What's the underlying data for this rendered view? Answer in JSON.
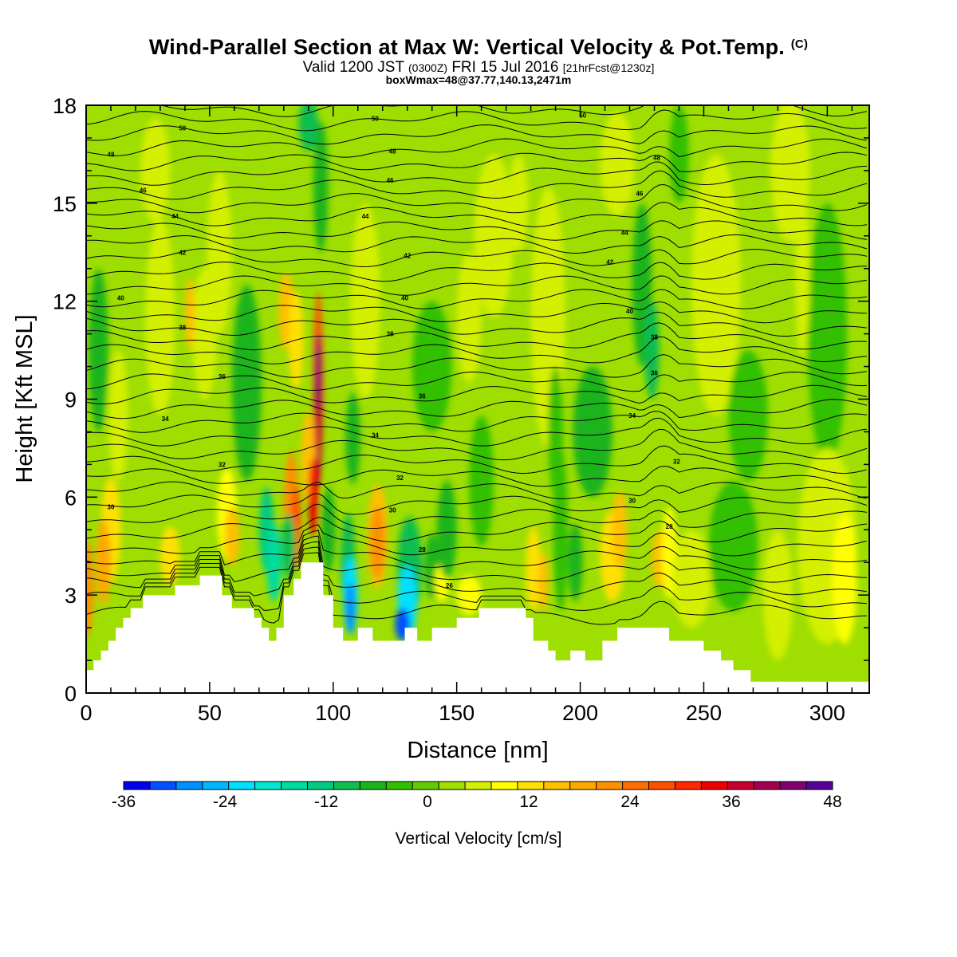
{
  "header": {
    "title": "Wind-Parallel Section at Max W: Vertical Velocity & Pot.Temp.",
    "title_mark": "(C)",
    "valid_prefix": "Valid 1200 JST",
    "valid_utc": "(0300Z)",
    "valid_date": "FRI 15 Jul 2016",
    "forecast_info": "[21hrFcst@1230z]",
    "box_info": "boxWmax=48@37.77,140.13,2471m"
  },
  "chart_data": {
    "type": "heatmap",
    "xlabel": "Distance [nm]",
    "ylabel": "Height [Kft MSL]",
    "xlim": [
      0,
      317
    ],
    "ylim": [
      0,
      18
    ],
    "x_ticks": [
      "0",
      "50",
      "100",
      "150",
      "200",
      "250",
      "300"
    ],
    "x_tick_values": [
      0,
      50,
      100,
      150,
      200,
      250,
      300
    ],
    "y_ticks": [
      "0",
      "3",
      "6",
      "9",
      "12",
      "15",
      "18"
    ],
    "y_tick_values": [
      0,
      3,
      6,
      9,
      12,
      15,
      18
    ],
    "colorbar": {
      "label": "Vertical Velocity [cm/s]",
      "tick_labels": [
        "-36",
        "-24",
        "-12",
        "0",
        "12",
        "24",
        "36",
        "48"
      ],
      "tick_values": [
        -36,
        -24,
        -12,
        0,
        12,
        24,
        36,
        48
      ],
      "levels": [
        -36,
        -33,
        -30,
        -27,
        -24,
        -21,
        -18,
        -15,
        -12,
        -9,
        -6,
        -3,
        0,
        3,
        6,
        9,
        12,
        15,
        18,
        21,
        24,
        27,
        30,
        33,
        36,
        39,
        42,
        45,
        48
      ],
      "colors": [
        "#0000f0",
        "#0050ff",
        "#0090ff",
        "#00b8ff",
        "#00e0ff",
        "#00e8d0",
        "#00dca0",
        "#00cc80",
        "#10be50",
        "#1cb41c",
        "#30c000",
        "#62cc00",
        "#9ede00",
        "#d4f000",
        "#ffff00",
        "#ffe000",
        "#ffc000",
        "#ffa800",
        "#ff9000",
        "#ff7000",
        "#ff5000",
        "#ff2800",
        "#ee0000",
        "#c8002e",
        "#a00050",
        "#800070",
        "#58009a"
      ]
    },
    "max_vertical_velocity": 48,
    "max_location": "37.77,140.13",
    "max_height_m": 2471,
    "terrain_kft": [
      [
        0,
        0.7
      ],
      [
        3,
        0.7
      ],
      [
        3,
        1.0
      ],
      [
        6,
        1.0
      ],
      [
        6,
        1.3
      ],
      [
        9,
        1.3
      ],
      [
        9,
        1.6
      ],
      [
        12,
        1.6
      ],
      [
        12,
        2.0
      ],
      [
        15,
        2.0
      ],
      [
        15,
        2.3
      ],
      [
        18,
        2.3
      ],
      [
        18,
        2.6
      ],
      [
        23,
        2.6
      ],
      [
        23,
        3.0
      ],
      [
        36,
        3.0
      ],
      [
        36,
        3.3
      ],
      [
        46,
        3.3
      ],
      [
        46,
        3.6
      ],
      [
        55,
        3.6
      ],
      [
        55,
        3.0
      ],
      [
        59,
        3.0
      ],
      [
        59,
        2.6
      ],
      [
        68,
        2.6
      ],
      [
        68,
        2.3
      ],
      [
        71,
        2.3
      ],
      [
        71,
        2.0
      ],
      [
        74,
        2.0
      ],
      [
        74,
        1.6
      ],
      [
        77,
        1.6
      ],
      [
        77,
        2.0
      ],
      [
        80,
        2.0
      ],
      [
        80,
        3.0
      ],
      [
        84,
        3.0
      ],
      [
        84,
        3.5
      ],
      [
        87,
        3.5
      ],
      [
        87,
        4.0
      ],
      [
        96,
        4.0
      ],
      [
        96,
        3.0
      ],
      [
        100,
        3.0
      ],
      [
        100,
        2.0
      ],
      [
        104,
        2.0
      ],
      [
        104,
        1.6
      ],
      [
        110,
        1.6
      ],
      [
        110,
        2.0
      ],
      [
        116,
        2.0
      ],
      [
        116,
        1.6
      ],
      [
        129,
        1.6
      ],
      [
        129,
        2.0
      ],
      [
        134,
        2.0
      ],
      [
        134,
        1.6
      ],
      [
        140,
        1.6
      ],
      [
        140,
        2.0
      ],
      [
        150,
        2.0
      ],
      [
        150,
        2.3
      ],
      [
        159,
        2.3
      ],
      [
        159,
        2.6
      ],
      [
        178,
        2.6
      ],
      [
        178,
        2.3
      ],
      [
        181,
        2.3
      ],
      [
        181,
        1.6
      ],
      [
        187,
        1.6
      ],
      [
        187,
        1.3
      ],
      [
        190,
        1.3
      ],
      [
        190,
        1.0
      ],
      [
        196,
        1.0
      ],
      [
        196,
        1.3
      ],
      [
        202,
        1.3
      ],
      [
        202,
        1.0
      ],
      [
        209,
        1.0
      ],
      [
        209,
        1.6
      ],
      [
        215,
        1.6
      ],
      [
        215,
        2.0
      ],
      [
        236,
        2.0
      ],
      [
        236,
        1.6
      ],
      [
        250,
        1.6
      ],
      [
        250,
        1.3
      ],
      [
        257,
        1.3
      ],
      [
        257,
        1.0
      ],
      [
        262,
        1.0
      ],
      [
        262,
        0.7
      ],
      [
        269,
        0.7
      ],
      [
        269,
        0.35
      ],
      [
        317,
        0.35
      ]
    ],
    "theta_contour_labels": [
      {
        "text": "50",
        "x": 39,
        "y": 17.3
      },
      {
        "text": "50",
        "x": 117,
        "y": 17.6
      },
      {
        "text": "50",
        "x": 201,
        "y": 17.7
      },
      {
        "text": "48",
        "x": 10,
        "y": 16.5
      },
      {
        "text": "48",
        "x": 124,
        "y": 16.6
      },
      {
        "text": "48",
        "x": 231,
        "y": 16.4
      },
      {
        "text": "46",
        "x": 23,
        "y": 15.4
      },
      {
        "text": "46",
        "x": 123,
        "y": 15.7
      },
      {
        "text": "46",
        "x": 224,
        "y": 15.3
      },
      {
        "text": "44",
        "x": 36,
        "y": 14.6
      },
      {
        "text": "44",
        "x": 113,
        "y": 14.6
      },
      {
        "text": "44",
        "x": 218,
        "y": 14.1
      },
      {
        "text": "42",
        "x": 39,
        "y": 13.5
      },
      {
        "text": "42",
        "x": 130,
        "y": 13.4
      },
      {
        "text": "42",
        "x": 212,
        "y": 13.2
      },
      {
        "text": "40",
        "x": 14,
        "y": 12.1
      },
      {
        "text": "40",
        "x": 129,
        "y": 12.1
      },
      {
        "text": "40",
        "x": 220,
        "y": 11.7
      },
      {
        "text": "38",
        "x": 39,
        "y": 11.2
      },
      {
        "text": "38",
        "x": 123,
        "y": 11.0
      },
      {
        "text": "38",
        "x": 230,
        "y": 10.9
      },
      {
        "text": "36",
        "x": 55,
        "y": 9.7
      },
      {
        "text": "36",
        "x": 136,
        "y": 9.1
      },
      {
        "text": "36",
        "x": 230,
        "y": 9.8
      },
      {
        "text": "34",
        "x": 32,
        "y": 8.4
      },
      {
        "text": "34",
        "x": 117,
        "y": 7.9
      },
      {
        "text": "34",
        "x": 221,
        "y": 8.5
      },
      {
        "text": "32",
        "x": 55,
        "y": 7.0
      },
      {
        "text": "32",
        "x": 127,
        "y": 6.6
      },
      {
        "text": "32",
        "x": 239,
        "y": 7.1
      },
      {
        "text": "30",
        "x": 10,
        "y": 5.7
      },
      {
        "text": "30",
        "x": 124,
        "y": 5.6
      },
      {
        "text": "30",
        "x": 221,
        "y": 5.9
      },
      {
        "text": "28",
        "x": 136,
        "y": 4.4
      },
      {
        "text": "28",
        "x": 236,
        "y": 5.1
      },
      {
        "text": "26",
        "x": 147,
        "y": 3.3
      }
    ]
  }
}
